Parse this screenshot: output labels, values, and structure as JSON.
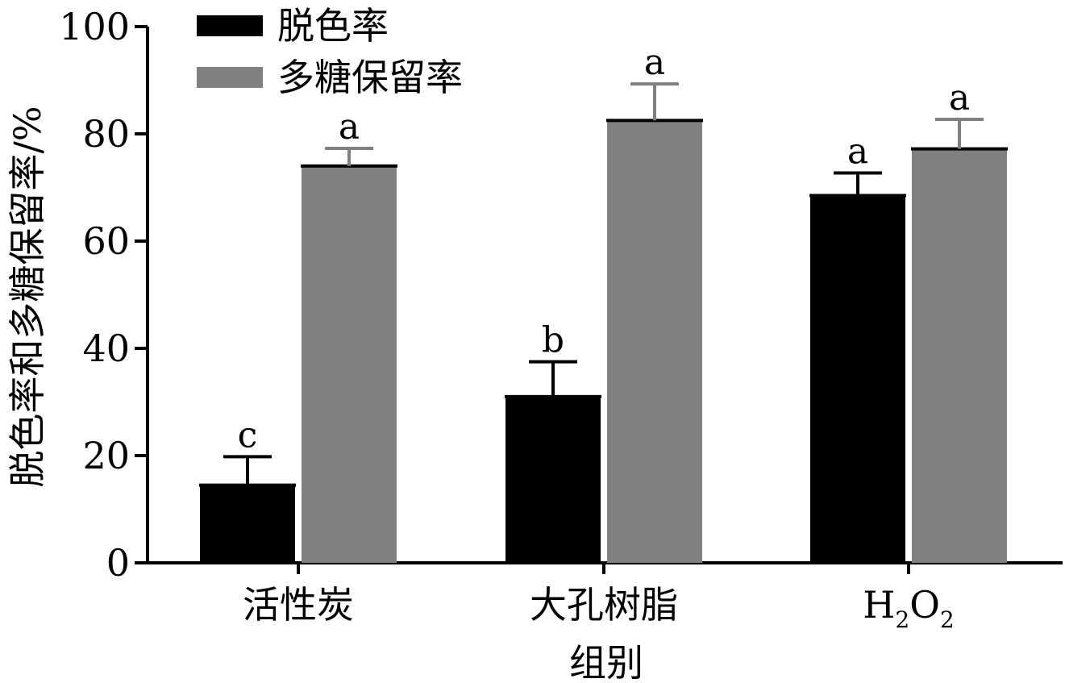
{
  "chart_data": {
    "type": "bar",
    "title": "",
    "xlabel": "组别",
    "ylabel": "脱色率和多糖保留率/%",
    "categories": [
      "活性炭",
      "大孔树脂",
      "H2O2"
    ],
    "series": [
      {
        "name": "脱色率",
        "color": "#000000",
        "values": [
          14.5,
          31.0,
          68.5
        ],
        "errors": [
          5.3,
          6.5,
          4.2
        ],
        "labels": [
          "c",
          "b",
          "a"
        ]
      },
      {
        "name": "多糖保留率",
        "color": "#808080",
        "values": [
          74.0,
          82.5,
          77.2
        ],
        "errors": [
          3.3,
          6.8,
          5.5
        ],
        "labels": [
          "a",
          "a",
          "a"
        ]
      }
    ],
    "ylim": [
      0,
      100
    ],
    "yticks": [
      0,
      20,
      40,
      60,
      80,
      100
    ],
    "grid": false,
    "legend_position": "top-left"
  }
}
